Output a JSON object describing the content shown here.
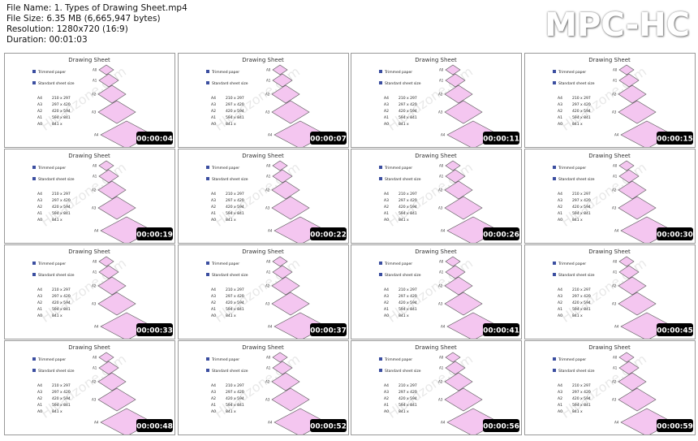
{
  "header": {
    "lines": [
      "File Name: 1. Types of Drawing Sheet.mp4",
      "File Size: 6.35 MB (6,665,947 bytes)",
      "Resolution: 1280x720 (16:9)",
      "Duration: 00:01:03"
    ],
    "logo": "MPC-HC"
  },
  "slide": {
    "title": "Drawing Sheet",
    "bullets": [
      "Trimmed paper",
      "Standard sheet size"
    ],
    "sizes": [
      {
        "name": "A4",
        "dims": "210 x 297"
      },
      {
        "name": "A3",
        "dims": "297 x 420"
      },
      {
        "name": "A2",
        "dims": "420 x 594"
      },
      {
        "name": "A1",
        "dims": "594 x 841"
      },
      {
        "name": "A0",
        "dims": "841 x"
      }
    ],
    "watermark": "Hloadzone.com"
  },
  "thumbnails": [
    {
      "time": "00:00:04"
    },
    {
      "time": "00:00:07"
    },
    {
      "time": "00:00:11"
    },
    {
      "time": "00:00:15"
    },
    {
      "time": "00:00:19"
    },
    {
      "time": "00:00:22"
    },
    {
      "time": "00:00:26"
    },
    {
      "time": "00:00:30"
    },
    {
      "time": "00:00:33"
    },
    {
      "time": "00:00:37"
    },
    {
      "time": "00:00:41"
    },
    {
      "time": "00:00:45"
    },
    {
      "time": "00:00:48"
    },
    {
      "time": "00:00:52"
    },
    {
      "time": "00:00:56"
    },
    {
      "time": "00:00:59"
    }
  ]
}
